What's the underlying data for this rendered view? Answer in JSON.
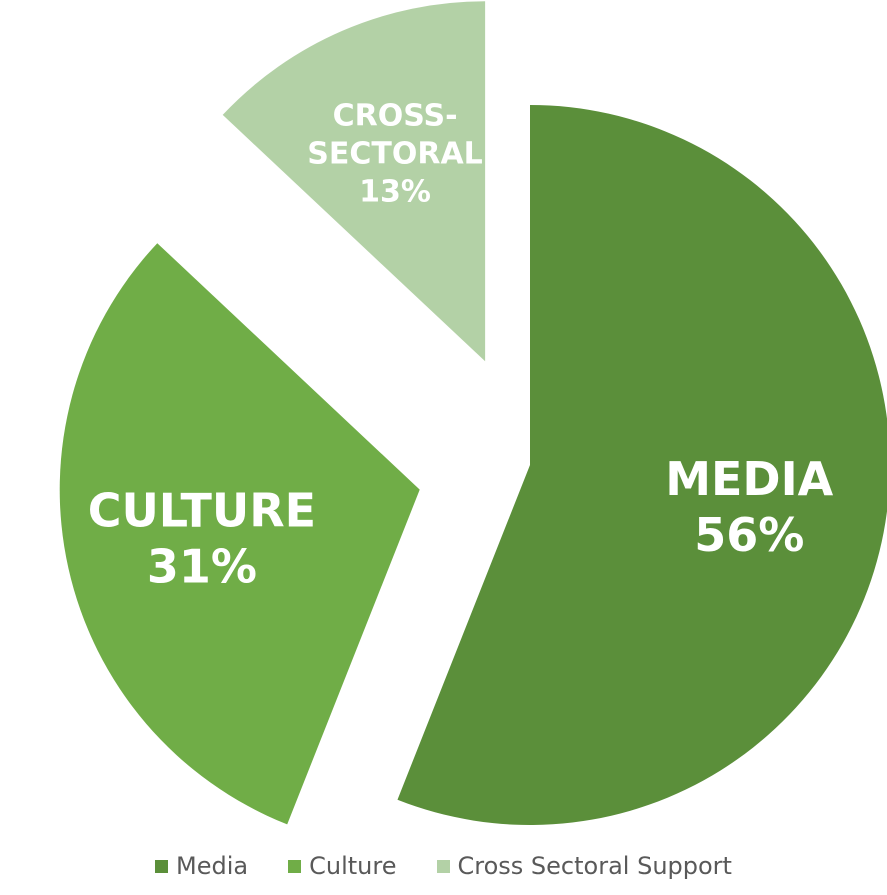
{
  "chart_data": {
    "type": "pie",
    "slices": [
      {
        "label": "Media",
        "value": 56,
        "color": "#5b8f3a",
        "text_lines": [
          "MEDIA",
          "56%"
        ],
        "exploded": false
      },
      {
        "label": "Culture",
        "value": 31,
        "color": "#70ad47",
        "text_lines": [
          "CULTURE",
          "31%"
        ],
        "exploded": true
      },
      {
        "label": "Cross Sectoral Support",
        "value": 13,
        "color": "#b3d1a6",
        "text_lines": [
          "CROSS-",
          "SECTORAL",
          "13%"
        ],
        "exploded": true
      }
    ],
    "legend": {
      "position": "bottom",
      "items": [
        {
          "label": "Media",
          "color": "#5b8f3a"
        },
        {
          "label": "Culture",
          "color": "#70ad47"
        },
        {
          "label": "Cross Sectoral Support",
          "color": "#b3d1a6"
        }
      ]
    }
  }
}
